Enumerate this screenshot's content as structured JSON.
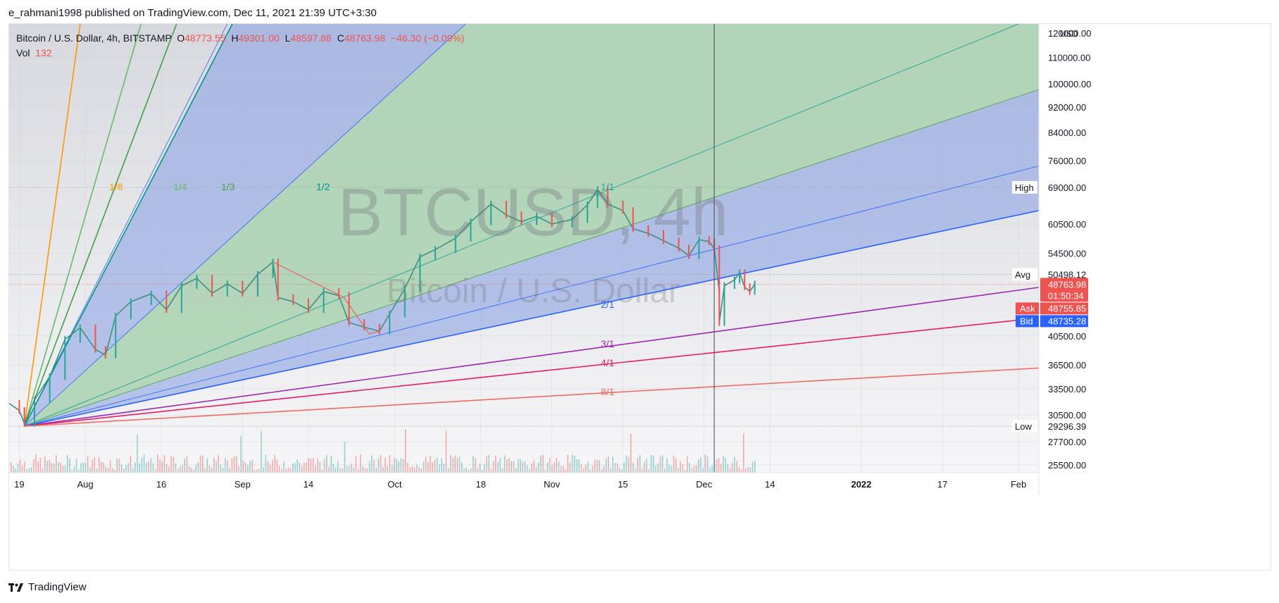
{
  "publish_line": "e_rahmani1998 published on TradingView.com, Dec 11, 2021 21:39 UTC+3:30",
  "footer_brand": "TradingView",
  "legend": {
    "symbol": "Bitcoin / U.S. Dollar, 4h, BITSTAMP",
    "open_label": "O",
    "open": "48773.55",
    "high_label": "H",
    "high": "49301.00",
    "low_label": "L",
    "low": "48597.88",
    "close_label": "C",
    "close": "48763.98",
    "change": "−46.30 (−0.09%)",
    "vol_label": "Vol",
    "vol": "132"
  },
  "watermark": {
    "line1": "BTCUSD, 4h",
    "line2": "Bitcoin / U.S. Dollar"
  },
  "colors": {
    "up": "#26a69a",
    "down": "#ef5350",
    "blue_fill": "#8fa6e3",
    "green_fill": "#b4dcaa",
    "price_tag": "#ef5350",
    "bid_tag": "#2962ff",
    "ask_tag": "#ef5350"
  },
  "chart_data": {
    "type": "candlestick",
    "symbol": "BTCUSD",
    "timeframe": "4h",
    "exchange": "BITSTAMP",
    "currency_label": "USD",
    "y_scale": "log",
    "ylim": [
      24800,
      124000
    ],
    "y_ticks": [
      {
        "value": 25500,
        "label": "25500.00"
      },
      {
        "value": 27700,
        "label": "27700.00"
      },
      {
        "value": 30500,
        "label": "30500.00"
      },
      {
        "value": 33500,
        "label": "33500.00"
      },
      {
        "value": 36500,
        "label": "36500.00"
      },
      {
        "value": 40500,
        "label": "40500.00"
      },
      {
        "value": 54500,
        "label": "54500.00"
      },
      {
        "value": 60500,
        "label": "60500.00"
      },
      {
        "value": 76000,
        "label": "76000.00"
      },
      {
        "value": 84000,
        "label": "84000.00"
      },
      {
        "value": 92000,
        "label": "92000.00"
      },
      {
        "value": 100000,
        "label": "100000.00"
      },
      {
        "value": 110000,
        "label": "110000.00"
      },
      {
        "value": 120000,
        "label": "120000.00"
      }
    ],
    "xlim": [
      "2021-07-17",
      "2022-02-05"
    ],
    "x_ticks": [
      {
        "date": "2021-07-19",
        "label": "19",
        "bold": false
      },
      {
        "date": "2021-08-01",
        "label": "Aug",
        "bold": false
      },
      {
        "date": "2021-08-16",
        "label": "16",
        "bold": false
      },
      {
        "date": "2021-09-01",
        "label": "Sep",
        "bold": false
      },
      {
        "date": "2021-09-14",
        "label": "14",
        "bold": false
      },
      {
        "date": "2021-10-01",
        "label": "Oct",
        "bold": false
      },
      {
        "date": "2021-10-18",
        "label": "18",
        "bold": false
      },
      {
        "date": "2021-11-01",
        "label": "Nov",
        "bold": false
      },
      {
        "date": "2021-11-15",
        "label": "15",
        "bold": false
      },
      {
        "date": "2021-12-01",
        "label": "Dec",
        "bold": false
      },
      {
        "date": "2021-12-14",
        "label": "14",
        "bold": false
      },
      {
        "date": "2022-01-01",
        "label": "2022",
        "bold": true
      },
      {
        "date": "2022-01-17",
        "label": "17",
        "bold": false
      },
      {
        "date": "2022-02-01",
        "label": "Feb",
        "bold": false
      }
    ],
    "price_path": [
      [
        "2021-07-17",
        31800
      ],
      [
        "2021-07-19",
        31000
      ],
      [
        "2021-07-20",
        29600
      ],
      [
        "2021-07-22",
        32200
      ],
      [
        "2021-07-25",
        35000
      ],
      [
        "2021-07-28",
        40000
      ],
      [
        "2021-07-31",
        41700
      ],
      [
        "2021-08-03",
        38600
      ],
      [
        "2021-08-05",
        37800
      ],
      [
        "2021-08-07",
        43500
      ],
      [
        "2021-08-10",
        45800
      ],
      [
        "2021-08-14",
        47100
      ],
      [
        "2021-08-17",
        44500
      ],
      [
        "2021-08-20",
        48500
      ],
      [
        "2021-08-23",
        49800
      ],
      [
        "2021-08-26",
        47200
      ],
      [
        "2021-08-29",
        48800
      ],
      [
        "2021-09-01",
        47200
      ],
      [
        "2021-09-04",
        50500
      ],
      [
        "2021-09-07",
        52800
      ],
      [
        "2021-09-08",
        46500
      ],
      [
        "2021-09-11",
        45800
      ],
      [
        "2021-09-14",
        44500
      ],
      [
        "2021-09-17",
        47500
      ],
      [
        "2021-09-20",
        46800
      ],
      [
        "2021-09-22",
        42500
      ],
      [
        "2021-09-25",
        41800
      ],
      [
        "2021-09-28",
        41200
      ],
      [
        "2021-09-30",
        43800
      ],
      [
        "2021-10-03",
        48000
      ],
      [
        "2021-10-06",
        53800
      ],
      [
        "2021-10-09",
        55200
      ],
      [
        "2021-10-13",
        57500
      ],
      [
        "2021-10-16",
        61000
      ],
      [
        "2021-10-20",
        65000
      ],
      [
        "2021-10-23",
        62500
      ],
      [
        "2021-10-26",
        61000
      ],
      [
        "2021-10-29",
        62200
      ],
      [
        "2021-11-01",
        60500
      ],
      [
        "2021-11-05",
        61500
      ],
      [
        "2021-11-08",
        64800
      ],
      [
        "2021-11-10",
        68500
      ],
      [
        "2021-11-12",
        65000
      ],
      [
        "2021-11-15",
        63500
      ],
      [
        "2021-11-17",
        59500
      ],
      [
        "2021-11-20",
        58500
      ],
      [
        "2021-11-23",
        57000
      ],
      [
        "2021-11-26",
        55500
      ],
      [
        "2021-11-28",
        54000
      ],
      [
        "2021-11-30",
        57200
      ],
      [
        "2021-12-02",
        56800
      ],
      [
        "2021-12-03",
        55400
      ],
      [
        "2021-12-04",
        47500
      ],
      [
        "2021-12-04",
        42500
      ],
      [
        "2021-12-05",
        48500
      ],
      [
        "2021-12-07",
        49500
      ],
      [
        "2021-12-08",
        50800
      ],
      [
        "2021-12-09",
        48300
      ],
      [
        "2021-12-10",
        47500
      ],
      [
        "2021-12-11",
        48764
      ]
    ],
    "pivot_zigzag": [
      [
        "2021-09-07",
        52800
      ],
      [
        "2021-09-21",
        46500
      ],
      [
        "2021-09-26",
        40800
      ],
      [
        "2021-09-28",
        41200
      ]
    ],
    "gann_fan": {
      "origin": {
        "date": "2021-07-20",
        "price": 29300
      },
      "fills": [
        {
          "upper": "1/1",
          "lower": "1/2",
          "kind": "blue"
        },
        {
          "upper": "1/1",
          "lower": "2/1",
          "kind": "green"
        }
      ],
      "lines": [
        {
          "label": "1/8",
          "end": {
            "date": "2021-07-31",
            "price": 124000
          },
          "color": "#ff9800"
        },
        {
          "label": "1/4",
          "end": {
            "date": "2021-08-12",
            "price": 124000
          },
          "color": "#66bb6a"
        },
        {
          "label": "1/3",
          "end": {
            "date": "2021-08-19",
            "price": 124000
          },
          "color": "#43a047"
        },
        {
          "label": "1/2",
          "end": {
            "date": "2021-08-30",
            "price": 124000
          },
          "color": "#009688"
        },
        {
          "label": "1/1",
          "end": {
            "date": "2022-02-01",
            "price": 124000
          },
          "color": "#26a69a"
        },
        {
          "label": "2/1",
          "end": {
            "date": "2022-02-05",
            "price": 63500
          },
          "color": "#2962ff"
        },
        {
          "label": "3/1",
          "end": {
            "date": "2022-02-05",
            "price": 48200
          },
          "color": "#9c27b0"
        },
        {
          "label": "4/1",
          "end": {
            "date": "2022-02-05",
            "price": 43200
          },
          "color": "#e91e63"
        },
        {
          "label": "8/1",
          "end": {
            "date": "2022-02-05",
            "price": 36100
          },
          "color": "#f06c60"
        }
      ],
      "label_positions_note": ""
    },
    "channel_lines": [
      {
        "from": {
          "date": "2021-07-20",
          "price": 29300
        },
        "to": {
          "date": "2021-08-29",
          "price": 124000
        },
        "color": "#2962ff"
      },
      {
        "from": {
          "date": "2021-07-20",
          "price": 29300
        },
        "to": {
          "date": "2022-02-05",
          "price": 74500
        },
        "color": "#2962ff"
      },
      {
        "from": {
          "date": "2021-07-20",
          "price": 29300
        },
        "to": {
          "date": "2021-10-15",
          "price": 124000
        },
        "color": "#2962ff"
      },
      {
        "from": {
          "date": "2021-07-20",
          "price": 29300
        },
        "to": {
          "date": "2022-02-05",
          "price": 98000
        },
        "color": "#43a047"
      }
    ],
    "vertical_marker_date": "2021-12-03",
    "levels": [
      {
        "label": "High",
        "value": 69000,
        "text": "69000.00"
      },
      {
        "label": "Avg",
        "value": 50498.12,
        "text": "50498.12"
      },
      {
        "label": "Low",
        "value": 29296.39,
        "text": "29296.39"
      }
    ],
    "last_price": {
      "value": 48763.98,
      "text": "48763.98",
      "countdown": "01:50:34"
    },
    "ask": {
      "label": "Ask",
      "value": 48755.85,
      "text": "48755.85"
    },
    "bid": {
      "label": "Bid",
      "value": 48735.28,
      "text": "48735.28"
    }
  }
}
